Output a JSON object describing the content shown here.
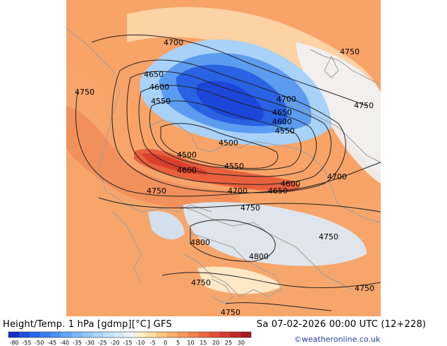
{
  "title": "Height/Temp. 1 hPa [gdmp][°C] GFS",
  "datetime": "Sa 07-02-2026 00:00 UTC (12+228)",
  "credit": "©weatheronline.co.uk",
  "contour_labels": [
    "4700",
    "4750",
    "4650",
    "4600",
    "4550",
    "4750",
    "4700",
    "4650",
    "4600",
    "4550",
    "4500",
    "4500",
    "4600",
    "4550",
    "4700",
    "4650",
    "4600",
    "4700",
    "4750",
    "4750",
    "4750",
    "4800",
    "4800",
    "4750",
    "4750",
    "4750",
    "4750"
  ],
  "colorbar": {
    "ticks": [
      "-80",
      "-55",
      "-50",
      "-45",
      "-40",
      "-35",
      "-30",
      "-25",
      "-20",
      "-15",
      "-10",
      "-5",
      "0",
      "5",
      "10",
      "15",
      "20",
      "25",
      "30"
    ],
    "colors": [
      "#1530c8",
      "#1d4ee0",
      "#2a66ec",
      "#3a7ef0",
      "#4c92f2",
      "#62a6f4",
      "#7ab8f6",
      "#92c8f8",
      "#a8d6fa",
      "#bee2fb",
      "#d4ecfc",
      "#e8f4fd",
      "#fff2c8",
      "#ffe2a0",
      "#fdc880",
      "#fbb068",
      "#f9985a",
      "#f4804e",
      "#ee6844",
      "#e6503a",
      "#d63a30",
      "#c02828",
      "#a81a20"
    ]
  },
  "colors": {
    "background_orange": "#f8a468",
    "deep_orange": "#f08052",
    "red": "#e24a30",
    "blue_dark": "#1c46d8",
    "blue_mid": "#4a8ef0",
    "blue_light": "#a4cff8",
    "coast": "#9e9e9e"
  }
}
